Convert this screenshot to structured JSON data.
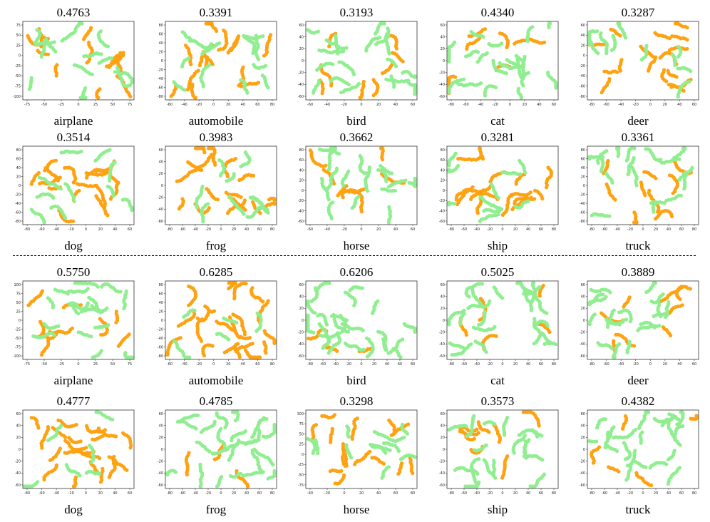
{
  "colors": {
    "class_a": "#ffa211",
    "class_b": "#90ee90"
  },
  "chart_data": [
    {
      "type": "scatter",
      "group": "top",
      "title": "0.4763",
      "xlabel": "airplane",
      "xticks": [
        "-75",
        "-50",
        "-25",
        "0",
        "25",
        "50",
        "75"
      ],
      "yticks": [
        "75",
        "50",
        "25",
        "0",
        "-25",
        "-50",
        "-75",
        "-100"
      ],
      "orange_share": 0.45
    },
    {
      "type": "scatter",
      "group": "top",
      "title": "0.3391",
      "xlabel": "automobile",
      "xticks": [
        "-60",
        "-40",
        "-20",
        "0",
        "20",
        "40",
        "60",
        "80"
      ],
      "yticks": [
        "80",
        "60",
        "40",
        "20",
        "0",
        "-20",
        "-40",
        "-60",
        "-80"
      ],
      "orange_share": 0.55
    },
    {
      "type": "scatter",
      "group": "top",
      "title": "0.3193",
      "xlabel": "bird",
      "xticks": [
        "-60",
        "-40",
        "-20",
        "0",
        "20",
        "40",
        "60"
      ],
      "yticks": [
        "60",
        "40",
        "20",
        "0",
        "-20",
        "-40",
        "-60"
      ],
      "orange_share": 0.3
    },
    {
      "type": "scatter",
      "group": "top",
      "title": "0.4340",
      "xlabel": "cat",
      "xticks": [
        "-80",
        "-60",
        "-40",
        "-20",
        "0",
        "20",
        "40",
        "60"
      ],
      "yticks": [
        "60",
        "40",
        "20",
        "0",
        "-20",
        "-40",
        "-60"
      ],
      "orange_share": 0.25
    },
    {
      "type": "scatter",
      "group": "top",
      "title": "0.3287",
      "xlabel": "deer",
      "xticks": [
        "-80",
        "-60",
        "-40",
        "-20",
        "0",
        "20",
        "40",
        "60"
      ],
      "yticks": [
        "60",
        "40",
        "20",
        "0",
        "-20",
        "-40",
        "-60",
        "-80"
      ],
      "orange_share": 0.6
    },
    {
      "type": "scatter",
      "group": "top",
      "title": "0.3514",
      "xlabel": "dog",
      "xticks": [
        "-80",
        "-60",
        "-40",
        "-20",
        "0",
        "20",
        "40",
        "60"
      ],
      "yticks": [
        "80",
        "60",
        "40",
        "20",
        "0",
        "-20",
        "-40",
        "-60",
        "-80"
      ],
      "orange_share": 0.6
    },
    {
      "type": "scatter",
      "group": "top",
      "title": "0.3983",
      "xlabel": "frog",
      "xticks": [
        "-80",
        "-60",
        "-40",
        "-20",
        "0",
        "20",
        "40",
        "60",
        "80"
      ],
      "yticks": [
        "60",
        "40",
        "20",
        "0",
        "-20",
        "-40",
        "-60"
      ],
      "orange_share": 0.65
    },
    {
      "type": "scatter",
      "group": "top",
      "title": "0.3662",
      "xlabel": "horse",
      "xticks": [
        "-60",
        "-40",
        "-20",
        "0",
        "20",
        "40",
        "60"
      ],
      "yticks": [
        "80",
        "60",
        "40",
        "20",
        "0",
        "-20",
        "-40",
        "-60"
      ],
      "orange_share": 0.35
    },
    {
      "type": "scatter",
      "group": "top",
      "title": "0.3281",
      "xlabel": "ship",
      "xticks": [
        "-80",
        "-60",
        "-40",
        "-20",
        "0",
        "20",
        "40",
        "60",
        "80"
      ],
      "yticks": [
        "80",
        "60",
        "40",
        "20",
        "0",
        "-20",
        "-40",
        "-60"
      ],
      "orange_share": 0.6
    },
    {
      "type": "scatter",
      "group": "top",
      "title": "0.3361",
      "xlabel": "truck",
      "xticks": [
        "-80",
        "-60",
        "-40",
        "-20",
        "0",
        "20",
        "40",
        "60",
        "80"
      ],
      "yticks": [
        "80",
        "60",
        "40",
        "20",
        "0",
        "-20",
        "-40",
        "-60",
        "-80"
      ],
      "orange_share": 0.35
    },
    {
      "type": "scatter",
      "group": "bottom",
      "title": "0.5750",
      "xlabel": "airplane",
      "xticks": [
        "-75",
        "-50",
        "-25",
        "0",
        "25",
        "50",
        "75"
      ],
      "yticks": [
        "100",
        "75",
        "50",
        "25",
        "0",
        "-25",
        "-50",
        "-75",
        "-100"
      ],
      "orange_share": 0.35
    },
    {
      "type": "scatter",
      "group": "bottom",
      "title": "0.6285",
      "xlabel": "automobile",
      "xticks": [
        "-60",
        "-40",
        "-20",
        "0",
        "20",
        "40",
        "60",
        "80"
      ],
      "yticks": [
        "80",
        "60",
        "40",
        "20",
        "0",
        "-20",
        "-40",
        "-60",
        "-80"
      ],
      "orange_share": 0.8
    },
    {
      "type": "scatter",
      "group": "bottom",
      "title": "0.6206",
      "xlabel": "bird",
      "xticks": [
        "-80",
        "-60",
        "-40",
        "-20",
        "0",
        "20",
        "40",
        "60",
        "80"
      ],
      "yticks": [
        "60",
        "40",
        "20",
        "0",
        "-20",
        "-40",
        "-60"
      ],
      "orange_share": 0.12
    },
    {
      "type": "scatter",
      "group": "bottom",
      "title": "0.5025",
      "xlabel": "cat",
      "xticks": [
        "-80",
        "-60",
        "-40",
        "-20",
        "0",
        "20",
        "40",
        "60",
        "80"
      ],
      "yticks": [
        "60",
        "40",
        "20",
        "0",
        "-20",
        "-40",
        "-60"
      ],
      "orange_share": 0.2
    },
    {
      "type": "scatter",
      "group": "bottom",
      "title": "0.3889",
      "xlabel": "deer",
      "xticks": [
        "-80",
        "-60",
        "-40",
        "-20",
        "0",
        "20",
        "40",
        "60"
      ],
      "yticks": [
        "60",
        "40",
        "20",
        "0",
        "-20",
        "-40",
        "-60"
      ],
      "orange_share": 0.3
    },
    {
      "type": "scatter",
      "group": "bottom",
      "title": "0.4777",
      "xlabel": "dog",
      "xticks": [
        "-80",
        "-60",
        "-40",
        "-20",
        "0",
        "20",
        "40",
        "60"
      ],
      "yticks": [
        "60",
        "40",
        "20",
        "0",
        "-20",
        "-40",
        "-60"
      ],
      "orange_share": 0.75
    },
    {
      "type": "scatter",
      "group": "bottom",
      "title": "0.4785",
      "xlabel": "frog",
      "xticks": [
        "-80",
        "-60",
        "-40",
        "-20",
        "0",
        "20",
        "40",
        "60",
        "80"
      ],
      "yticks": [
        "60",
        "40",
        "20",
        "0",
        "-20",
        "-40",
        "-60"
      ],
      "orange_share": 0.12
    },
    {
      "type": "scatter",
      "group": "bottom",
      "title": "0.3298",
      "xlabel": "horse",
      "xticks": [
        "-40",
        "-20",
        "0",
        "20",
        "40",
        "60",
        "80"
      ],
      "yticks": [
        "100",
        "75",
        "50",
        "25",
        "0",
        "-25",
        "-50",
        "-75"
      ],
      "orange_share": 0.55
    },
    {
      "type": "scatter",
      "group": "bottom",
      "title": "0.3573",
      "xlabel": "ship",
      "xticks": [
        "-80",
        "-60",
        "-40",
        "-20",
        "0",
        "20",
        "40",
        "60",
        "80"
      ],
      "yticks": [
        "60",
        "40",
        "20",
        "0",
        "-20",
        "-40",
        "-60"
      ],
      "orange_share": 0.3
    },
    {
      "type": "scatter",
      "group": "bottom",
      "title": "0.4382",
      "xlabel": "truck",
      "xticks": [
        "-80",
        "-60",
        "-40",
        "-20",
        "0",
        "20",
        "40",
        "60",
        "80"
      ],
      "yticks": [
        "60",
        "40",
        "20",
        "0",
        "-20",
        "-40",
        "-60"
      ],
      "orange_share": 0.2
    }
  ]
}
